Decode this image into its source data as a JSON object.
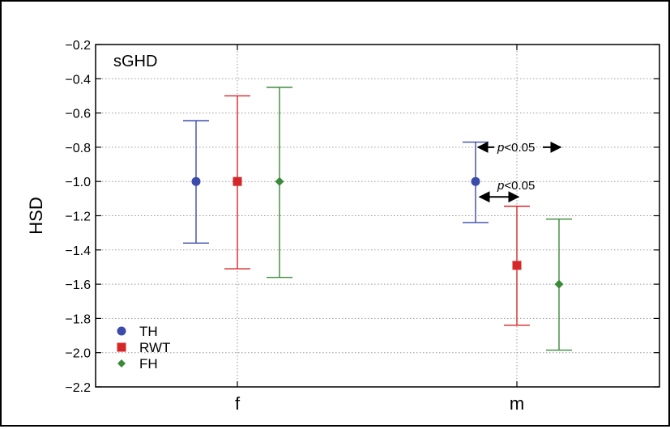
{
  "chart_data": {
    "type": "errorbar",
    "title": "sGHD",
    "xlabel": "",
    "ylabel": "HSD",
    "categories": [
      "f",
      "m"
    ],
    "ylim": [
      -2.2,
      -0.2
    ],
    "yticks": [
      -0.2,
      -0.4,
      -0.6,
      -0.8,
      -1.0,
      -1.2,
      -1.4,
      -1.6,
      -1.8,
      -2.0,
      -2.2
    ],
    "ytick_labels": [
      "−0.2",
      "−0.4",
      "−0.6",
      "−0.8",
      "−1.0",
      "−1.2",
      "−1.4",
      "−1.6",
      "−1.8",
      "−2.0",
      "−2.2"
    ],
    "grid": true,
    "legend": "bottom-left",
    "series": [
      {
        "name": "TH",
        "color": "#3b4bab",
        "marker": "circle",
        "values": [
          -1.0,
          -1.0
        ],
        "lower": [
          -1.36,
          -1.24
        ],
        "upper": [
          -0.645,
          -0.77
        ]
      },
      {
        "name": "RWT",
        "color": "#d62728",
        "marker": "square",
        "values": [
          -1.0,
          -1.49
        ],
        "lower": [
          -1.51,
          -1.84
        ],
        "upper": [
          -0.5,
          -1.145
        ]
      },
      {
        "name": "FH",
        "color": "#3a8a3a",
        "marker": "diamond",
        "values": [
          -1.0,
          -1.6
        ],
        "lower": [
          -1.56,
          -1.985
        ],
        "upper": [
          -0.45,
          -1.22
        ]
      }
    ],
    "annotations": [
      {
        "text_p": "p",
        "text_rest": "<0.05",
        "y": -0.8
      },
      {
        "text_p": "p",
        "text_rest": "<0.05",
        "y": -1.08
      }
    ]
  }
}
